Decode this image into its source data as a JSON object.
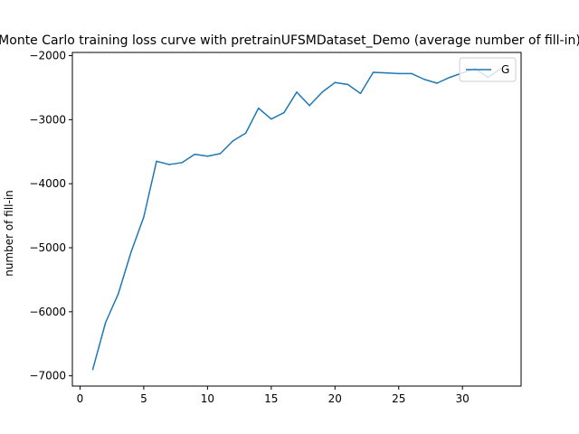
{
  "chart_data": {
    "type": "line",
    "title": "Monte Carlo training loss curve with pretrainUFSMDataset_Demo (average number of fill-in)",
    "xlabel": "",
    "ylabel": "number of fill-in",
    "xlim": [
      -0.6,
      34.6
    ],
    "ylim": [
      -7160,
      -1950
    ],
    "xticks": [
      0,
      5,
      10,
      15,
      20,
      25,
      30
    ],
    "yticks": [
      -7000,
      -6000,
      -5000,
      -4000,
      -3000,
      -2000
    ],
    "grid": false,
    "legend_position": "top-right",
    "series": [
      {
        "name": "G",
        "color": "#1f77b4",
        "x": [
          1,
          2,
          3,
          4,
          5,
          6,
          7,
          8,
          9,
          10,
          11,
          12,
          13,
          14,
          15,
          16,
          17,
          18,
          19,
          20,
          21,
          22,
          23,
          24,
          25,
          26,
          27,
          28,
          29,
          30,
          31,
          32,
          33
        ],
        "y": [
          -6900,
          -6170,
          -5720,
          -5070,
          -4520,
          -3650,
          -3700,
          -3670,
          -3540,
          -3570,
          -3530,
          -3330,
          -3210,
          -2820,
          -2990,
          -2890,
          -2570,
          -2780,
          -2570,
          -2420,
          -2450,
          -2590,
          -2260,
          -2270,
          -2280,
          -2280,
          -2370,
          -2430,
          -2340,
          -2270,
          -2200,
          -2340,
          -2200
        ]
      }
    ]
  }
}
